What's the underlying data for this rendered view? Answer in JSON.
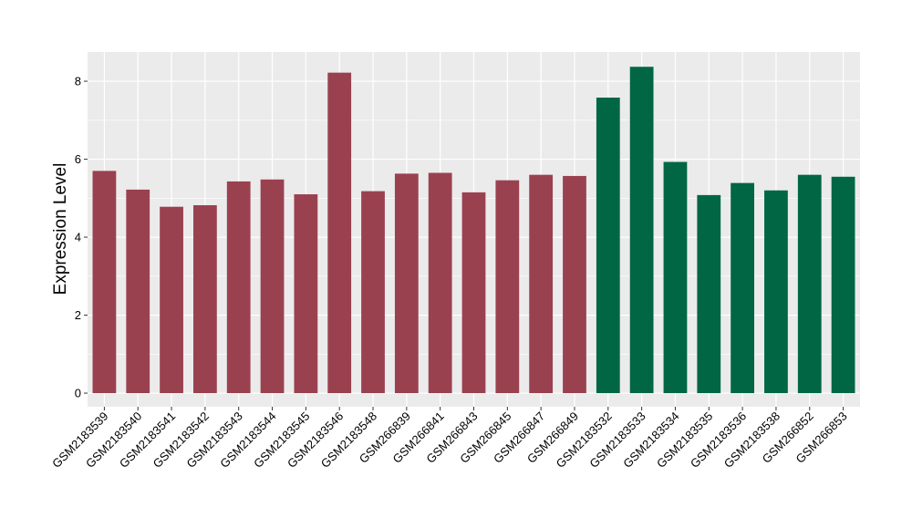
{
  "chart_data": {
    "type": "bar",
    "title": "",
    "xlabel": "",
    "ylabel": "Expression Level",
    "ylim": [
      -0.35,
      8.75
    ],
    "yticks": [
      0,
      2,
      4,
      6,
      8
    ],
    "grid": true,
    "legend": "none",
    "colors": {
      "group1": "#9a4150",
      "group2": "#006644",
      "panel": "#ebebeb",
      "gridline": "#ffffff"
    },
    "categories": [
      "GSM2183539",
      "GSM2183540",
      "GSM2183541",
      "GSM2183542",
      "GSM2183543",
      "GSM2183544",
      "GSM2183545",
      "GSM2183546",
      "GSM2183548",
      "GSM266839",
      "GSM266841",
      "GSM266843",
      "GSM266845",
      "GSM266847",
      "GSM266849",
      "GSM2183532",
      "GSM2183533",
      "GSM2183534",
      "GSM2183535",
      "GSM2183536",
      "GSM2183538",
      "GSM266852",
      "GSM266853"
    ],
    "values": [
      5.7,
      5.22,
      4.78,
      4.82,
      5.43,
      5.48,
      5.1,
      8.22,
      5.18,
      5.63,
      5.65,
      5.15,
      5.46,
      5.6,
      5.57,
      7.58,
      8.37,
      5.93,
      5.08,
      5.39,
      5.2,
      5.6,
      5.55
    ],
    "groups": [
      "group1",
      "group1",
      "group1",
      "group1",
      "group1",
      "group1",
      "group1",
      "group1",
      "group1",
      "group1",
      "group1",
      "group1",
      "group1",
      "group1",
      "group1",
      "group2",
      "group2",
      "group2",
      "group2",
      "group2",
      "group2",
      "group2",
      "group2"
    ]
  }
}
